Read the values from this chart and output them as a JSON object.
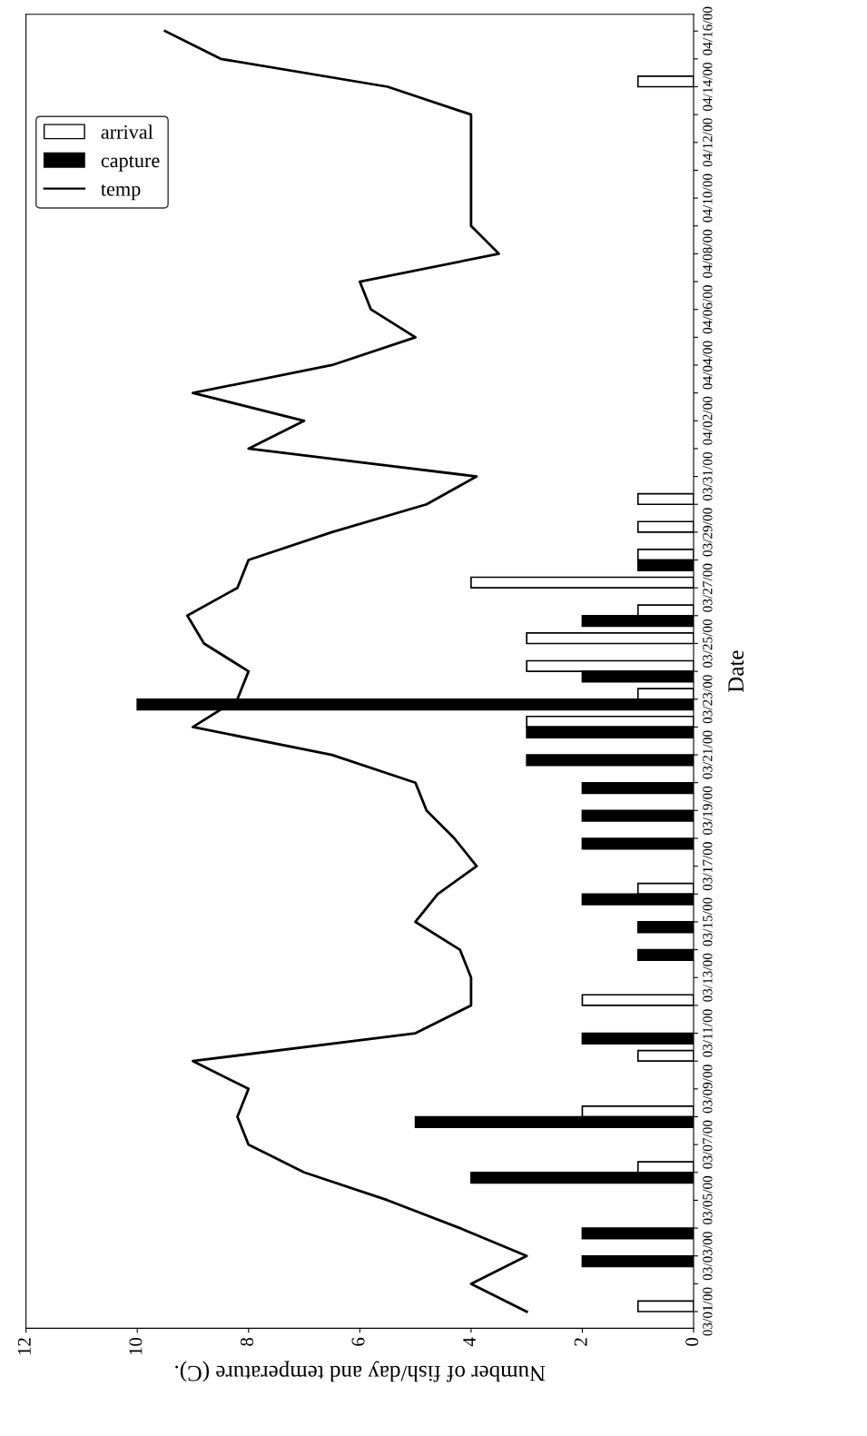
{
  "chart_data": {
    "type": "bar",
    "orientation": "horizontal",
    "xlabel": "Number of fish/day and temperature (C).",
    "ylabel": "Date",
    "categories": [
      "04/16/00",
      null,
      "04/14/00",
      null,
      "04/12/00",
      null,
      "04/10/00",
      null,
      "04/08/00",
      null,
      "04/06/00",
      null,
      "04/04/00",
      null,
      "04/02/00",
      null,
      "03/31/00",
      null,
      "03/29/00",
      null,
      "03/27/00",
      null,
      "03/25/00",
      null,
      "03/23/00",
      null,
      "03/21/00",
      null,
      "03/19/00",
      null,
      "03/17/00",
      null,
      "03/15/00",
      null,
      "03/13/00",
      null,
      "03/11/00",
      null,
      "03/09/00",
      null,
      "03/07/00",
      null,
      "03/05/00",
      null,
      "03/03/00",
      null,
      "03/01/00"
    ],
    "series": [
      {
        "name": "arrival",
        "color": "#ffffff",
        "values": [
          null,
          null,
          1,
          null,
          null,
          null,
          null,
          null,
          null,
          null,
          null,
          null,
          null,
          null,
          null,
          null,
          null,
          1,
          1,
          1,
          4,
          1,
          3,
          3,
          1,
          3,
          null,
          null,
          null,
          null,
          null,
          1,
          null,
          null,
          null,
          2,
          null,
          1,
          null,
          2,
          null,
          1,
          null,
          null,
          null,
          null,
          1
        ]
      },
      {
        "name": "capture",
        "color": "#000000",
        "values": [
          null,
          null,
          null,
          null,
          null,
          null,
          null,
          null,
          null,
          null,
          null,
          null,
          null,
          null,
          null,
          null,
          null,
          null,
          null,
          1,
          null,
          2,
          null,
          2,
          10,
          3,
          3,
          2,
          2,
          2,
          null,
          2,
          1,
          1,
          null,
          null,
          2,
          null,
          null,
          5,
          null,
          4,
          null,
          2,
          2,
          null,
          null
        ]
      },
      {
        "name": "temp",
        "type": "line",
        "color": "#000000",
        "values": [
          9.5,
          8.5,
          5.5,
          4.0,
          4.0,
          4.0,
          4.0,
          4.0,
          3.5,
          6.0,
          5.8,
          5.0,
          6.5,
          9.0,
          7.0,
          8.0,
          3.9,
          4.8,
          6.5,
          8.0,
          8.2,
          9.1,
          8.8,
          8.0,
          8.2,
          9.0,
          6.5,
          5.0,
          4.8,
          4.3,
          3.9,
          4.6,
          5.0,
          4.2,
          4.0,
          4.0,
          5.0,
          9.0,
          8.0,
          8.2,
          8.0,
          7.0,
          5.5,
          4.2,
          3.0,
          4.0,
          3.0
        ]
      }
    ],
    "xlim": [
      12,
      0
    ],
    "xticks": [
      0,
      2,
      4,
      6,
      8,
      10,
      12
    ],
    "grid": false,
    "legend": "top left",
    "marker": "none",
    "line_style": "solid"
  }
}
